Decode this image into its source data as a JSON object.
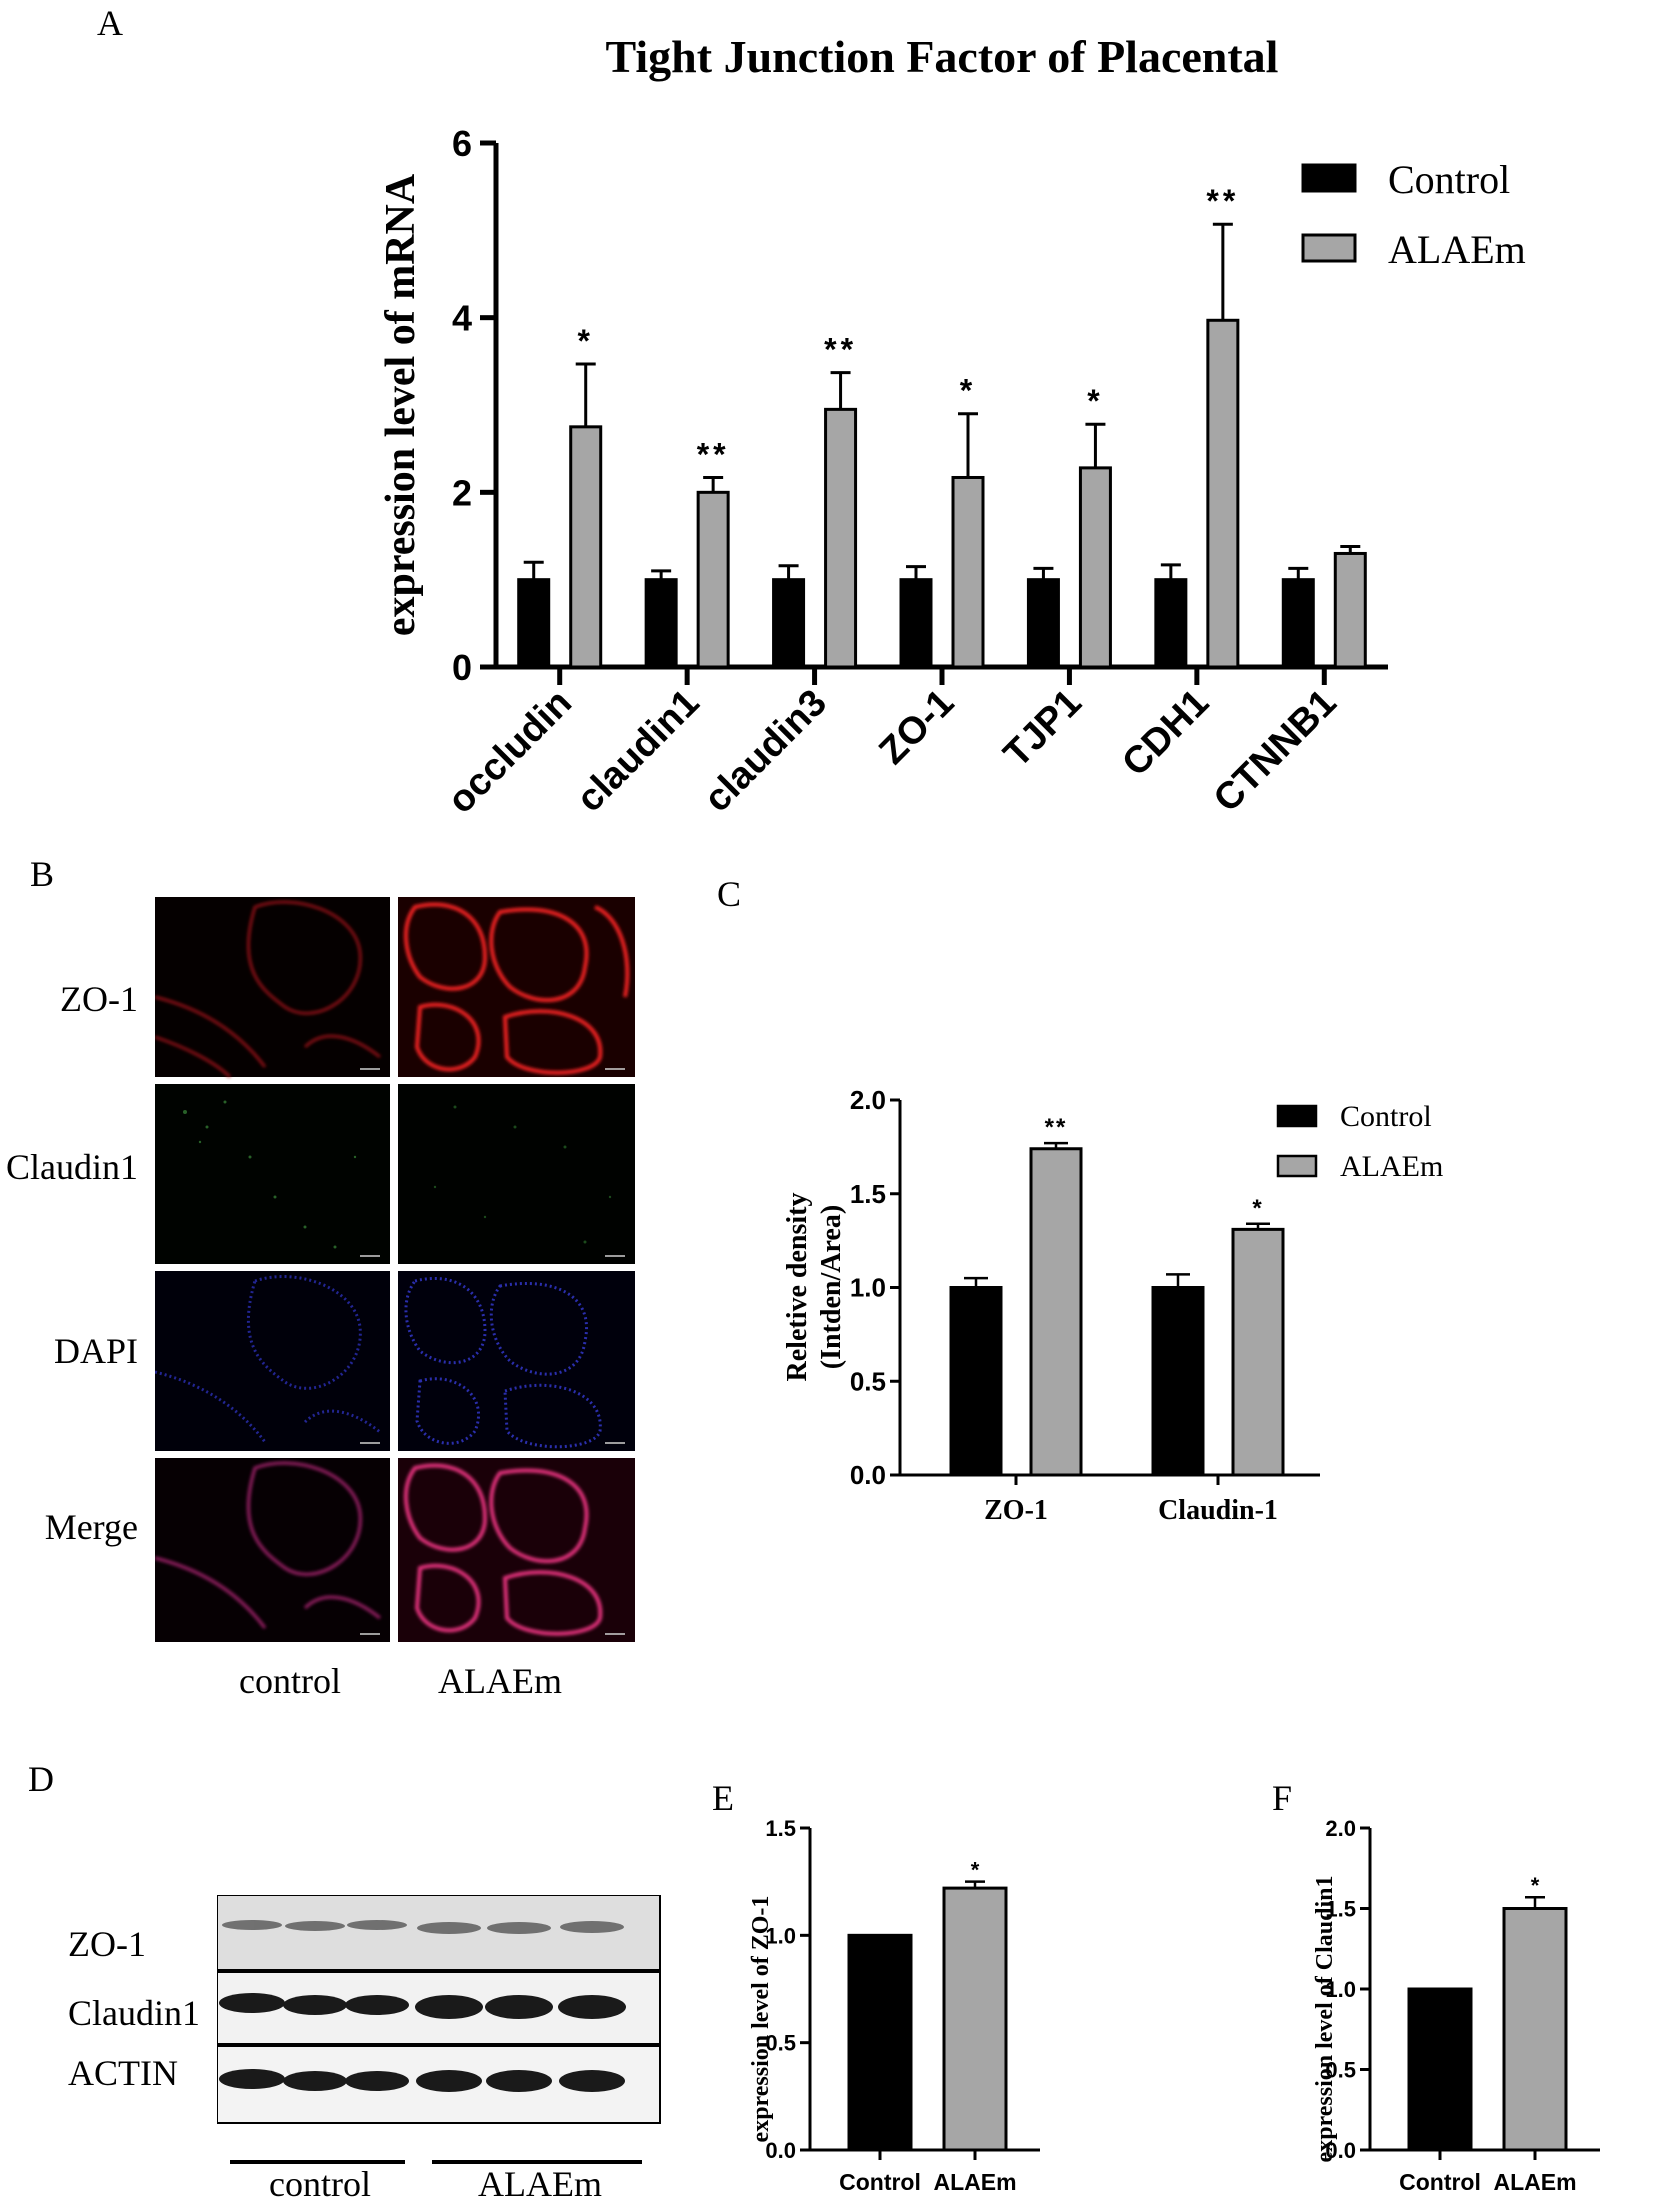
{
  "panels": {
    "a": "A",
    "b": "B",
    "c": "C",
    "d": "D",
    "e": "E",
    "f": "F"
  },
  "chart_data": [
    {
      "id": "A",
      "type": "bar",
      "title": "Tight Junction Factor of Placental",
      "ylabel": "expression level of mRNA",
      "xlabel": "",
      "categories": [
        "occludin",
        "claudin1",
        "claudin3",
        "ZO-1",
        "TJP1",
        "CDH1",
        "CTNNB1"
      ],
      "series": [
        {
          "name": "Control",
          "color": "#000000",
          "values": [
            1.0,
            1.0,
            1.0,
            1.0,
            1.0,
            1.0,
            1.0
          ],
          "errors": [
            0.2,
            0.1,
            0.16,
            0.15,
            0.13,
            0.17,
            0.13
          ]
        },
        {
          "name": "ALAEm",
          "color": "#a6a6a6",
          "values": [
            2.75,
            2.0,
            2.95,
            2.17,
            2.28,
            3.97,
            1.3
          ],
          "errors": [
            0.72,
            0.17,
            0.42,
            0.73,
            0.5,
            1.1,
            0.08
          ]
        }
      ],
      "significance": [
        "*",
        "**",
        "**",
        "*",
        "*",
        "**",
        ""
      ],
      "ylim": [
        0,
        6
      ],
      "yticks": [
        "0",
        "2",
        "4",
        "6"
      ],
      "legend_position": "top-right"
    },
    {
      "id": "C",
      "type": "bar",
      "title": "",
      "ylabel": "Reletive density",
      "ylabel2": "(Intden/Area)",
      "categories": [
        "ZO-1",
        "Claudin-1"
      ],
      "series": [
        {
          "name": "Control",
          "color": "#000000",
          "values": [
            1.0,
            1.0
          ],
          "errors": [
            0.05,
            0.07
          ]
        },
        {
          "name": "ALAEm",
          "color": "#a6a6a6",
          "values": [
            1.74,
            1.31
          ],
          "errors": [
            0.03,
            0.03
          ]
        }
      ],
      "significance": [
        "**",
        "*"
      ],
      "ylim": [
        0,
        2
      ],
      "yticks": [
        "0.0",
        "0.5",
        "1.0",
        "1.5",
        "2.0"
      ],
      "legend_position": "top-right"
    },
    {
      "id": "E",
      "type": "bar",
      "ylabel": "expression level of ZO-1",
      "categories": [
        "Control",
        "ALAEm"
      ],
      "values": [
        1.0,
        1.22
      ],
      "errors": [
        0,
        0.03
      ],
      "colors": [
        "#000000",
        "#a6a6a6"
      ],
      "significance": [
        "",
        "*"
      ],
      "ylim": [
        0,
        1.5
      ],
      "yticks": [
        "0.0",
        "0.5",
        "1.0",
        "1.5"
      ]
    },
    {
      "id": "F",
      "type": "bar",
      "ylabel": "expression level of Claudin1",
      "categories": [
        "Control",
        "ALAEm"
      ],
      "values": [
        1.0,
        1.5
      ],
      "errors": [
        0,
        0.07
      ],
      "colors": [
        "#000000",
        "#a6a6a6"
      ],
      "significance": [
        "",
        "*"
      ],
      "ylim": [
        0,
        2.0
      ],
      "yticks": [
        "0.0",
        "0.5",
        "1.0",
        "1.5",
        "2.0"
      ]
    }
  ],
  "microscopy": {
    "rows": [
      "ZO-1",
      "Claudin1",
      "DAPI",
      "Merge"
    ],
    "columns": [
      "control",
      "ALAEm"
    ]
  },
  "western": {
    "rows": [
      "ZO-1",
      "Claudin1",
      "ACTIN"
    ],
    "groups": [
      "control",
      "ALAEm"
    ]
  }
}
